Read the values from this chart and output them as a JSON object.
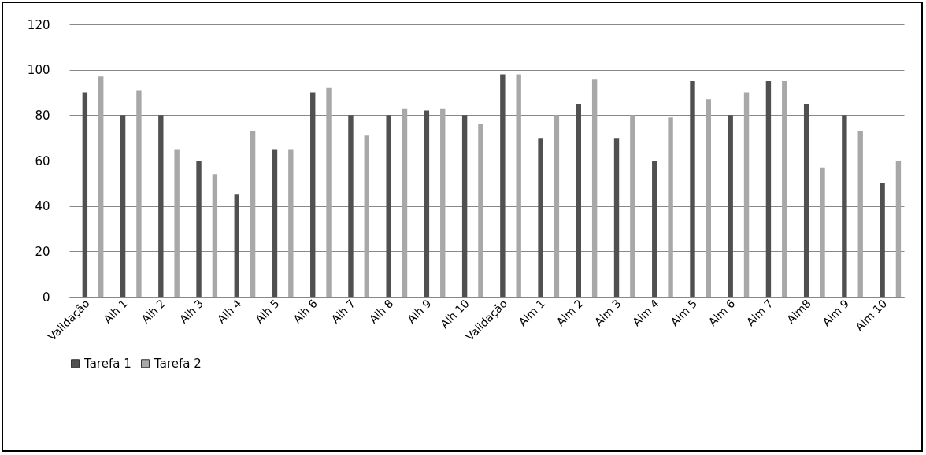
{
  "chart_data": {
    "type": "bar",
    "categories": [
      "Validação",
      "Alh 1",
      "Alh 2",
      "Alh 3",
      "Alh 4",
      "Alh 5",
      "Alh 6",
      "Alh 7",
      "Alh 8",
      "Alh 9",
      "Alh 10",
      "Validação",
      "Alm 1",
      "Alm 2",
      "Alm 3",
      "Alm 4",
      "Alm 5",
      "Alm 6",
      "Alm 7",
      "Alm8",
      "Alm 9",
      "Alm 10"
    ],
    "series": [
      {
        "name": "Tarefa 1",
        "color": "#505050",
        "values": [
          90,
          80,
          80,
          60,
          45,
          65,
          90,
          80,
          80,
          82,
          80,
          98,
          70,
          85,
          70,
          60,
          95,
          80,
          95,
          85,
          80,
          50
        ]
      },
      {
        "name": "Tarefa 2",
        "color": "#a8a8a8",
        "values": [
          97,
          91,
          65,
          54,
          73,
          65,
          92,
          71,
          83,
          83,
          76,
          98,
          80,
          96,
          80,
          79,
          87,
          90,
          95,
          57,
          73,
          60
        ]
      }
    ],
    "ylim": [
      0,
      120
    ],
    "yticks": [
      0,
      20,
      40,
      60,
      80,
      100,
      120
    ],
    "grid": "y",
    "legend": "bottom"
  }
}
